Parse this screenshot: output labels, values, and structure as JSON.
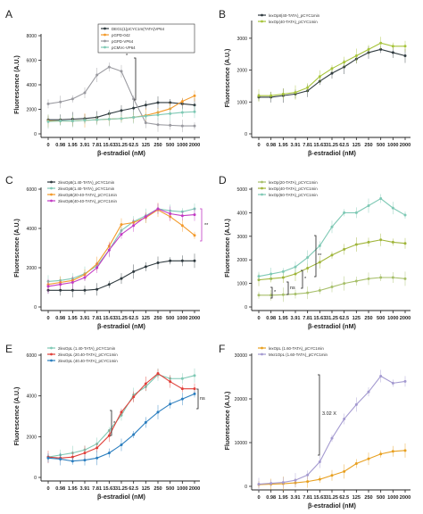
{
  "figure": {
    "panels": [
      "A",
      "B",
      "C",
      "D",
      "E",
      "F"
    ]
  },
  "chart_data": [
    {
      "panel": "A",
      "type": "line",
      "xlabel": "β-estradiol (nM)",
      "ylabel": "Fluorescence (A.U.)",
      "categories": [
        "0",
        "0.98",
        "1.95",
        "3.91",
        "7.81",
        "15.63",
        "31.25",
        "62.5",
        "125",
        "250",
        "500",
        "1000",
        "2000"
      ],
      "ylim": [
        0,
        8000
      ],
      "yticks": [
        0,
        2000,
        4000,
        6000,
        8000
      ],
      "legend": "top-right",
      "series": [
        {
          "name": "DEG1(1)pCYC1m(TATA)VP64",
          "color": "#2f3a3f",
          "values": [
            1150,
            1150,
            1200,
            1250,
            1350,
            1650,
            1900,
            2100,
            2350,
            2550,
            2550,
            2450,
            2350
          ]
        },
        {
          "name": "pGPD-042",
          "color": "#f39a2a",
          "values": [
            1050,
            1050,
            1050,
            1100,
            1150,
            1200,
            1250,
            1350,
            1500,
            1750,
            2050,
            2650,
            3100
          ]
        },
        {
          "name": "pGPD-VP64",
          "color": "#9a9aa0",
          "values": [
            2450,
            2600,
            2850,
            3350,
            4800,
            5450,
            5100,
            2850,
            900,
            750,
            700,
            650,
            650
          ]
        },
        {
          "name": "pCMVc-VP64",
          "color": "#7fc9b5",
          "values": [
            1000,
            1050,
            1050,
            1100,
            1150,
            1200,
            1250,
            1350,
            1450,
            1550,
            1650,
            1750,
            1800
          ]
        }
      ],
      "annotations": [
        "*"
      ]
    },
    {
      "panel": "B",
      "type": "line",
      "xlabel": "β-estradiol (nM)",
      "ylabel": "Fluorescence (A.U.)",
      "categories": [
        "0",
        "0.98",
        "1.95",
        "3.91",
        "7.81",
        "15.63",
        "31.25",
        "62.5",
        "125",
        "250",
        "500",
        "1000",
        "2000"
      ],
      "ylim": [
        0,
        3500
      ],
      "yticks": [
        0,
        1000,
        2000,
        3000
      ],
      "legend": "top-left",
      "series": [
        {
          "name": "lexOp8(40-TATA)_pCYC1min",
          "color": "#2f3a3f",
          "values": [
            1150,
            1150,
            1200,
            1250,
            1350,
            1650,
            1900,
            2100,
            2350,
            2550,
            2650,
            2550,
            2450
          ]
        },
        {
          "name": "lexOp(40-TATA)_pCYC1min",
          "color": "#a7c43a",
          "values": [
            1200,
            1200,
            1250,
            1300,
            1450,
            1800,
            2050,
            2250,
            2450,
            2650,
            2850,
            2750,
            2750
          ]
        }
      ]
    },
    {
      "panel": "C",
      "type": "line",
      "xlabel": "β-estradiol (nM)",
      "ylabel": "Fluorescence (A.U.)",
      "categories": [
        "0",
        "0.98",
        "1.95",
        "3.91",
        "7.81",
        "15.63",
        "31.25",
        "62.5",
        "125",
        "250",
        "500",
        "1000",
        "2000"
      ],
      "ylim": [
        0,
        6000
      ],
      "yticks": [
        0,
        2000,
        4000,
        6000
      ],
      "legend": "top-left",
      "series": [
        {
          "name": "2lexOp8(1.40-TATA)_pCYC1min",
          "color": "#2f3a3f",
          "values": [
            850,
            850,
            850,
            850,
            900,
            1150,
            1450,
            1800,
            2050,
            2250,
            2350,
            2350,
            2350
          ]
        },
        {
          "name": "2lexOp8(1.40-TATA)_pCYC1min",
          "color": "#7fc9b5",
          "values": [
            1300,
            1350,
            1450,
            1700,
            2100,
            2900,
            3900,
            4350,
            4650,
            5000,
            4900,
            4850,
            5000
          ]
        },
        {
          "name": "2lexOp8(20-40-TATA)_pCYC1min",
          "color": "#f39a2a",
          "values": [
            1150,
            1250,
            1350,
            1650,
            2200,
            3100,
            4200,
            4300,
            4550,
            4950,
            4600,
            4150,
            3650
          ]
        },
        {
          "name": "2lexOp8(40-40-TATA)_pCYC1min",
          "color": "#c23bc4",
          "values": [
            1050,
            1150,
            1250,
            1500,
            2000,
            2900,
            3700,
            4150,
            4600,
            5000,
            4750,
            4650,
            4700
          ]
        }
      ],
      "annotations": [
        "**"
      ]
    },
    {
      "panel": "D",
      "type": "line",
      "xlabel": "β-estradiol (nM)",
      "ylabel": "Fluorescence (A.U.)",
      "categories": [
        "0",
        "0.98",
        "1.95",
        "3.91",
        "7.81",
        "15.63",
        "31.25",
        "62.5",
        "125",
        "250",
        "500",
        "1000",
        "2000"
      ],
      "ylim": [
        0,
        5000
      ],
      "yticks": [
        0,
        1000,
        2000,
        3000,
        4000,
        5000
      ],
      "legend": "top-left",
      "series": [
        {
          "name": "lexOp(20-TATA)_pCYC1min",
          "color": "#a7bf6a",
          "values": [
            500,
            500,
            520,
            550,
            600,
            700,
            850,
            1000,
            1100,
            1200,
            1250,
            1250,
            1200
          ]
        },
        {
          "name": "lexOp(40-TATA)_pCYC1min",
          "color": "#a0b53a",
          "values": [
            1150,
            1200,
            1250,
            1400,
            1650,
            1900,
            2200,
            2450,
            2650,
            2750,
            2850,
            2750,
            2700
          ]
        },
        {
          "name": "lexOp(60-TATA)_pCYC1min",
          "color": "#7fc9b5",
          "values": [
            1300,
            1400,
            1500,
            1700,
            2100,
            2600,
            3400,
            4000,
            4000,
            4300,
            4600,
            4200,
            3900
          ]
        }
      ],
      "annotations": [
        "*",
        "ns",
        "*",
        "**"
      ]
    },
    {
      "panel": "E",
      "type": "line",
      "xlabel": "β-estradiol (nM)",
      "ylabel": "Fluorescence (A.U.)",
      "categories": [
        "0",
        "0.98",
        "1.95",
        "3.91",
        "7.81",
        "15.63",
        "31.25",
        "62.5",
        "125",
        "250",
        "500",
        "1000",
        "2000"
      ],
      "ylim": [
        0,
        6000
      ],
      "yticks": [
        0,
        2000,
        4000,
        6000
      ],
      "legend": "top-left",
      "series": [
        {
          "name": "2lexOpL (1.40-TATA)_pCYC1min",
          "color": "#7fc9b5",
          "values": [
            1000,
            1100,
            1200,
            1350,
            1650,
            2300,
            3050,
            4050,
            4450,
            5050,
            4850,
            4850,
            5000
          ]
        },
        {
          "name": "2lexOpL (20.40-TATA)_pCYC1min",
          "color": "#e0403a",
          "values": [
            1000,
            950,
            1000,
            1200,
            1450,
            2050,
            3200,
            3950,
            4600,
            5100,
            4700,
            4350,
            4350
          ]
        },
        {
          "name": "2lexOpL (40.40-TATA)_pCYC1min",
          "color": "#2b7ebf",
          "values": [
            950,
            900,
            800,
            850,
            950,
            1200,
            1600,
            2100,
            2700,
            3200,
            3600,
            3850,
            4100
          ]
        }
      ],
      "annotations": [
        "*",
        "ns"
      ]
    },
    {
      "panel": "F",
      "type": "line",
      "xlabel": "β-estradiol (nM)",
      "ylabel": "Fluorescence (A.U.)",
      "categories": [
        "0",
        "0.98",
        "1.95",
        "3.91",
        "7.81",
        "15.63",
        "31.25",
        "62.5",
        "125",
        "250",
        "500",
        "1000",
        "2000"
      ],
      "ylim": [
        0,
        30000
      ],
      "yticks": [
        0,
        10000,
        20000,
        30000
      ],
      "legend": "top-left",
      "series": [
        {
          "name": "lexOpL (1.60-TATA)_pCYC1min",
          "color": "#e8a020",
          "values": [
            400,
            500,
            600,
            800,
            1100,
            1600,
            2500,
            3400,
            5200,
            6300,
            7400,
            8000,
            8200
          ]
        },
        {
          "name": "Mxr1OpL (1.60-TATA)_pCYC1min",
          "color": "#a49ad0",
          "values": [
            500,
            700,
            900,
            1400,
            2600,
            5600,
            11000,
            15400,
            18700,
            21600,
            25200,
            23600,
            24000
          ]
        }
      ],
      "annotations": [
        "3.02 X"
      ]
    }
  ]
}
